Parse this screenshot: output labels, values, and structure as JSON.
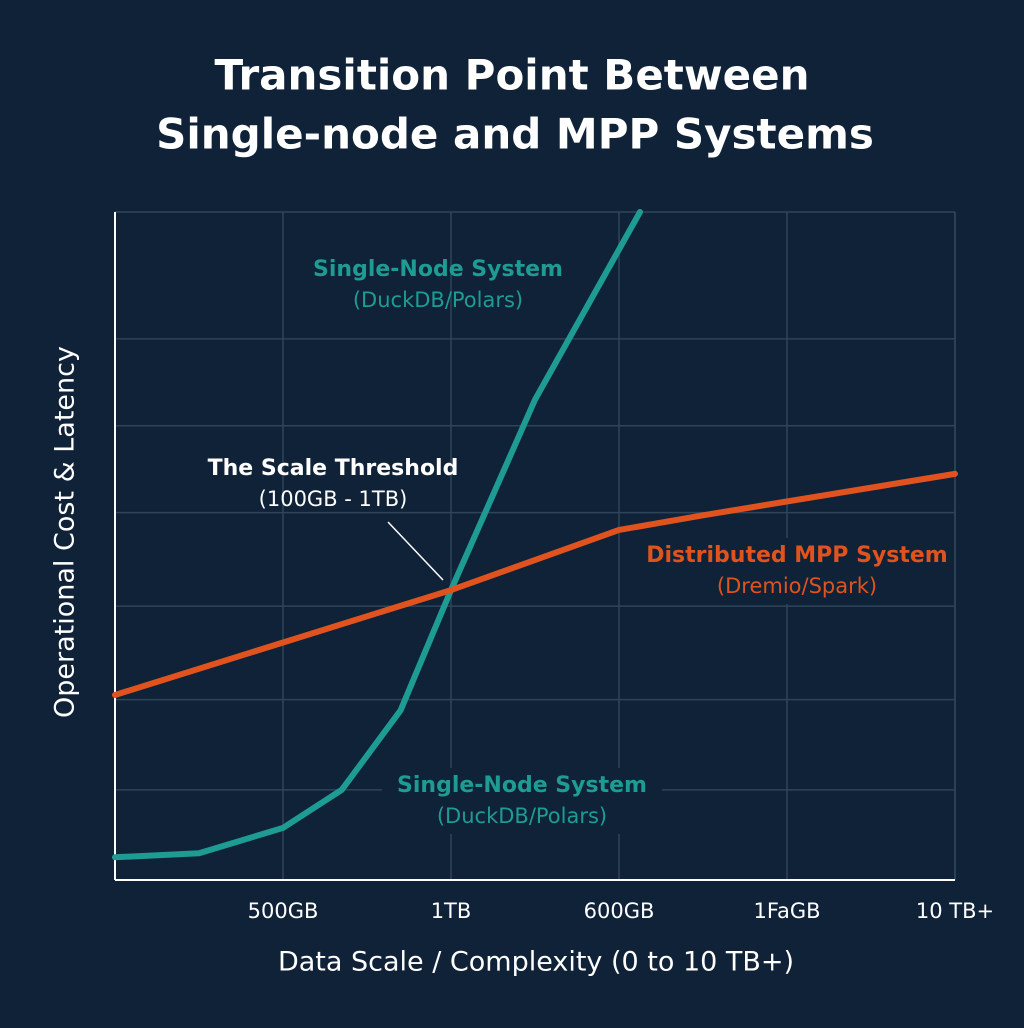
{
  "chart_data": {
    "type": "line",
    "title": [
      "Transition Point Between",
      "Single-node and MPP Systems"
    ],
    "xlabel": "Data Scale / Complexity (0 to 10 TB+)",
    "ylabel": "Operational Cost & Latency",
    "xlim": [
      0,
      10
    ],
    "ylim": [
      0,
      100
    ],
    "xticks": [
      {
        "value": 2,
        "label": "500GB"
      },
      {
        "value": 4,
        "label": "1TB"
      },
      {
        "value": 6,
        "label": "600GB"
      },
      {
        "value": 8,
        "label": "1FaGB"
      },
      {
        "value": 10,
        "label": "10 TB+"
      }
    ],
    "ygrid": [
      13.5,
      27,
      41,
      55,
      68,
      81
    ],
    "grid": true,
    "series": [
      {
        "name": "Single-Node System",
        "color": "#1e9c94",
        "x": [
          0,
          1,
          2,
          2.7,
          3.4,
          4,
          5,
          6.25
        ],
        "values": [
          3.4,
          4,
          7.8,
          13.5,
          25.4,
          43.4,
          71.9,
          100
        ]
      },
      {
        "name": "Distributed MPP System",
        "color": "#e0531e",
        "x": [
          0,
          4,
          6,
          7,
          10
        ],
        "values": [
          27.7,
          43.4,
          52.4,
          54.6,
          60.8
        ]
      }
    ],
    "annotations": [
      {
        "text": "Single-Node System",
        "sub": "(DuckDB/Polars)"
      },
      {
        "text": "The Scale Threshold",
        "sub": "(100GB - 1TB)"
      },
      {
        "text": "Distributed MPP System",
        "sub": "(Dremio/Spark)"
      },
      {
        "text": "Single-Node System",
        "sub": "(DuckDB/Polars)"
      }
    ]
  }
}
